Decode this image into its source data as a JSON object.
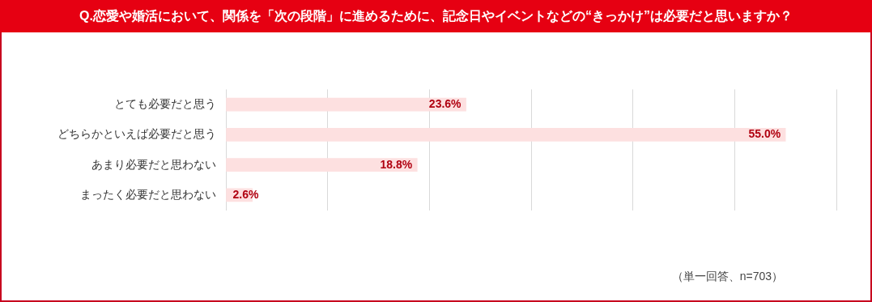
{
  "chart_data": {
    "type": "bar",
    "orientation": "horizontal",
    "title": "Q.恋愛や婚活において、関係を「次の段階」に進めるために、記念日やイベントなどの“きっかけ”は必要だと思いますか？",
    "categories": [
      "とても必要だと思う",
      "どちらかといえば必要だと思う",
      "あまり必要だと思わない",
      "まったく必要だと思わない"
    ],
    "values": [
      23.6,
      55.0,
      18.8,
      2.6
    ],
    "value_labels": [
      "23.6%",
      "55.0%",
      "18.8%",
      "2.6%"
    ],
    "color": "#fde0e0",
    "xlim": [
      0,
      60
    ],
    "xticks": [
      {
        "value": 0,
        "label": null
      },
      {
        "value": 10,
        "label": null
      },
      {
        "value": 20,
        "label": null
      },
      {
        "value": 30,
        "label": null
      },
      {
        "value": 40,
        "label": null
      },
      {
        "value": 50,
        "label": null
      },
      {
        "value": 60,
        "label": null
      }
    ],
    "grid": "x",
    "tick_labels": "y",
    "annotations": [
      "（単一回答、n=703）"
    ]
  }
}
